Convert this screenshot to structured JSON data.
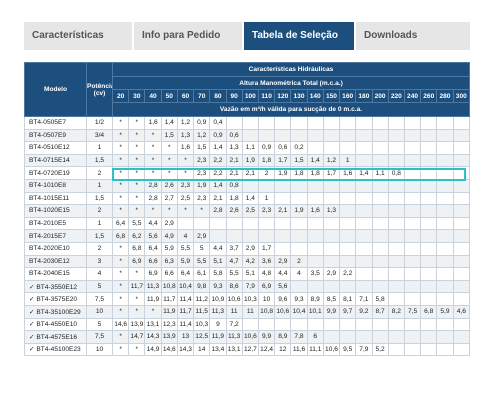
{
  "tabs": [
    "Características",
    "Info para Pedido",
    "Tabela de Seleção",
    "Downloads"
  ],
  "active_tab": 2,
  "table": {
    "col_model": "Modelo",
    "col_power": "Potência (cv)",
    "header_main": "Características Hidráulicas",
    "header_sub": "Altura Manométrica Total (m.c.a.)",
    "header_flow": "Vazão em m³/h válida para sucção de 0 m.c.a.",
    "heights": [
      "20",
      "30",
      "40",
      "50",
      "60",
      "70",
      "80",
      "90",
      "100",
      "110",
      "120",
      "130",
      "140",
      "150",
      "160",
      "180",
      "200",
      "220",
      "240",
      "260",
      "280",
      "300"
    ],
    "rows": [
      {
        "model": "BT4-0505E7",
        "power": "1/2",
        "values": [
          "*",
          "*",
          "1,6",
          "1,4",
          "1,2",
          "0,9",
          "0,4",
          "",
          "",
          "",
          "",
          "",
          "",
          "",
          "",
          "",
          "",
          "",
          "",
          "",
          "",
          ""
        ]
      },
      {
        "model": "BT4-0507E9",
        "power": "3/4",
        "values": [
          "*",
          "*",
          "*",
          "1,5",
          "1,3",
          "1,2",
          "0,9",
          "0,6",
          "",
          "",
          "",
          "",
          "",
          "",
          "",
          "",
          "",
          "",
          "",
          "",
          "",
          ""
        ]
      },
      {
        "model": "BT4-0510E12",
        "power": "1",
        "values": [
          "*",
          "*",
          "*",
          "*",
          "1,6",
          "1,5",
          "1,4",
          "1,3",
          "1,1",
          "0,9",
          "0,6",
          "0,2",
          "",
          "",
          "",
          "",
          "",
          "",
          "",
          "",
          "",
          ""
        ]
      },
      {
        "model": "BT4-0715E14",
        "power": "1,5",
        "values": [
          "*",
          "*",
          "*",
          "*",
          "*",
          "2,3",
          "2,2",
          "2,1",
          "1,9",
          "1,8",
          "1,7",
          "1,5",
          "1,4",
          "1,2",
          "1",
          "",
          "",
          "",
          "",
          "",
          "",
          ""
        ]
      },
      {
        "model": "BT4-0720E19",
        "power": "2",
        "values": [
          "*",
          "*",
          "*",
          "*",
          "*",
          "2,3",
          "2,2",
          "2,1",
          "2,1",
          "2",
          "1,9",
          "1,8",
          "1,8",
          "1,7",
          "1,6",
          "1,4",
          "1,1",
          "0,8",
          "",
          "",
          "",
          ""
        ]
      },
      {
        "model": "BT4-1010E8",
        "power": "1",
        "values": [
          "*",
          "*",
          "2,8",
          "2,6",
          "2,3",
          "1,9",
          "1,4",
          "0,8",
          "",
          "",
          "",
          "",
          "",
          "",
          "",
          "",
          "",
          "",
          "",
          "",
          "",
          ""
        ]
      },
      {
        "model": "BT4-1015E11",
        "power": "1,5",
        "values": [
          "*",
          "*",
          "2,8",
          "2,7",
          "2,5",
          "2,3",
          "2,1",
          "1,8",
          "1,4",
          "1",
          "",
          "",
          "",
          "",
          "",
          "",
          "",
          "",
          "",
          "",
          "",
          ""
        ]
      },
      {
        "model": "BT4-1020E15",
        "power": "2",
        "values": [
          "*",
          "*",
          "*",
          "*",
          "*",
          "*",
          "2,8",
          "2,6",
          "2,5",
          "2,3",
          "2,1",
          "1,9",
          "1,6",
          "1,3",
          "",
          "",
          "",
          "",
          "",
          "",
          "",
          ""
        ]
      },
      {
        "model": "BT4-2010E5",
        "power": "1",
        "values": [
          "6,4",
          "5,5",
          "4,4",
          "2,9",
          "",
          "",
          "",
          "",
          "",
          "",
          "",
          "",
          "",
          "",
          "",
          "",
          "",
          "",
          "",
          "",
          "",
          ""
        ]
      },
      {
        "model": "BT4-2015E7",
        "power": "1,5",
        "values": [
          "6,8",
          "6,2",
          "5,6",
          "4,9",
          "4",
          "2,9",
          "",
          "",
          "",
          "",
          "",
          "",
          "",
          "",
          "",
          "",
          "",
          "",
          "",
          "",
          "",
          ""
        ]
      },
      {
        "model": "BT4-2020E10",
        "power": "2",
        "values": [
          "*",
          "6,8",
          "6,4",
          "5,9",
          "5,5",
          "5",
          "4,4",
          "3,7",
          "2,9",
          "1,7",
          "",
          "",
          "",
          "",
          "",
          "",
          "",
          "",
          "",
          "",
          "",
          ""
        ]
      },
      {
        "model": "BT4-2030E12",
        "power": "3",
        "values": [
          "*",
          "6,9",
          "6,6",
          "6,3",
          "5,9",
          "5,5",
          "5,1",
          "4,7",
          "4,2",
          "3,6",
          "2,9",
          "2",
          "",
          "",
          "",
          "",
          "",
          "",
          "",
          "",
          "",
          ""
        ]
      },
      {
        "model": "BT4-2040E15",
        "power": "4",
        "values": [
          "*",
          "*",
          "6,9",
          "6,6",
          "6,4",
          "6,1",
          "5,8",
          "5,5",
          "5,1",
          "4,8",
          "4,4",
          "4",
          "3,5",
          "2,9",
          "2,2",
          "",
          "",
          "",
          "",
          "",
          "",
          ""
        ]
      },
      {
        "model": "✓ BT4-3550E12",
        "power": "5",
        "values": [
          "*",
          "11,7",
          "11,3",
          "10,8",
          "10,4",
          "9,8",
          "9,3",
          "8,6",
          "7,9",
          "6,9",
          "5,6",
          "",
          "",
          "",
          "",
          "",
          "",
          "",
          "",
          "",
          "",
          ""
        ]
      },
      {
        "model": "✓ BT4-3575E20",
        "power": "7,5",
        "values": [
          "*",
          "*",
          "11,9",
          "11,7",
          "11,4",
          "11,2",
          "10,9",
          "10,6",
          "10,3",
          "10",
          "9,6",
          "9,3",
          "8,9",
          "8,5",
          "8,1",
          "7,1",
          "5,8",
          "",
          "",
          "",
          "",
          ""
        ]
      },
      {
        "model": "✓ BT4-35100E29",
        "power": "10",
        "values": [
          "*",
          "*",
          "*",
          "11,9",
          "11,7",
          "11,5",
          "11,3",
          "11",
          "11",
          "10,8",
          "10,6",
          "10,4",
          "10,1",
          "9,9",
          "9,7",
          "9,2",
          "8,7",
          "8,2",
          "7,5",
          "6,8",
          "5,9",
          "4,6"
        ]
      },
      {
        "model": "✓ BT4-4550E10",
        "power": "5",
        "values": [
          "14,6",
          "13,9",
          "13,1",
          "12,3",
          "11,4",
          "10,3",
          "9",
          "7,2",
          "",
          "",
          "",
          "",
          "",
          "",
          "",
          "",
          "",
          "",
          "",
          "",
          "",
          ""
        ]
      },
      {
        "model": "✓ BT4-4575E16",
        "power": "7,5",
        "values": [
          "*",
          "14,7",
          "14,3",
          "13,9",
          "13",
          "12,5",
          "11,9",
          "11,3",
          "10,6",
          "9,9",
          "8,9",
          "7,8",
          "6",
          "",
          "",
          "",
          "",
          "",
          "",
          "",
          "",
          ""
        ]
      },
      {
        "model": "✓ BT4-45100E23",
        "power": "10",
        "values": [
          "*",
          "*",
          "14,9",
          "14,6",
          "14,3",
          "14",
          "13,4",
          "13,1",
          "12,7",
          "12,4",
          "12",
          "11,6",
          "11,1",
          "10,6",
          "9,5",
          "7,9",
          "5,2",
          "",
          "",
          "",
          "",
          ""
        ]
      }
    ]
  }
}
